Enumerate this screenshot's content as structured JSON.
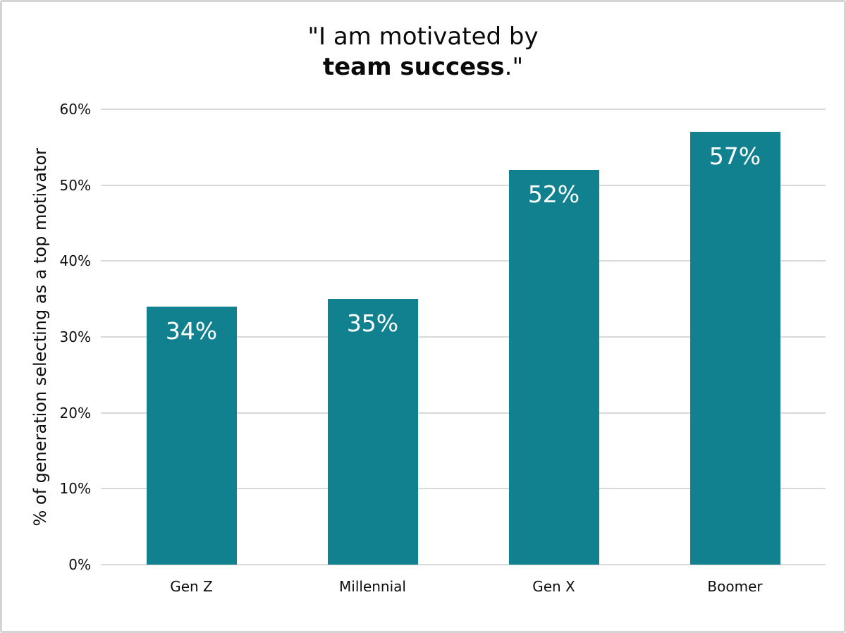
{
  "title": {
    "line1": "\"I am motivated by",
    "line2_bold": "team success",
    "line2_suffix": ".\""
  },
  "colors": {
    "bar": "#12818F",
    "gridline": "#D9D9D9",
    "value_label": "#FFFFFF",
    "text": "#0D0D0D",
    "frame_border": "#D4D4D4",
    "background": "#FFFFFF"
  },
  "chart_data": {
    "type": "bar",
    "title": "\"I am motivated by team success.\"",
    "categories": [
      "Gen Z",
      "Millennial",
      "Gen X",
      "Boomer"
    ],
    "values": [
      34,
      35,
      52,
      57
    ],
    "value_labels": [
      "34%",
      "35%",
      "52%",
      "57%"
    ],
    "xlabel": "",
    "ylabel": "% of generation selecting as a top motivator",
    "ylim": [
      0,
      60
    ],
    "yticks": [
      "0%",
      "10%",
      "20%",
      "30%",
      "40%",
      "50%",
      "60%"
    ],
    "grid": "horizontal-only",
    "legend": "none",
    "bar_color": "#12818F"
  }
}
